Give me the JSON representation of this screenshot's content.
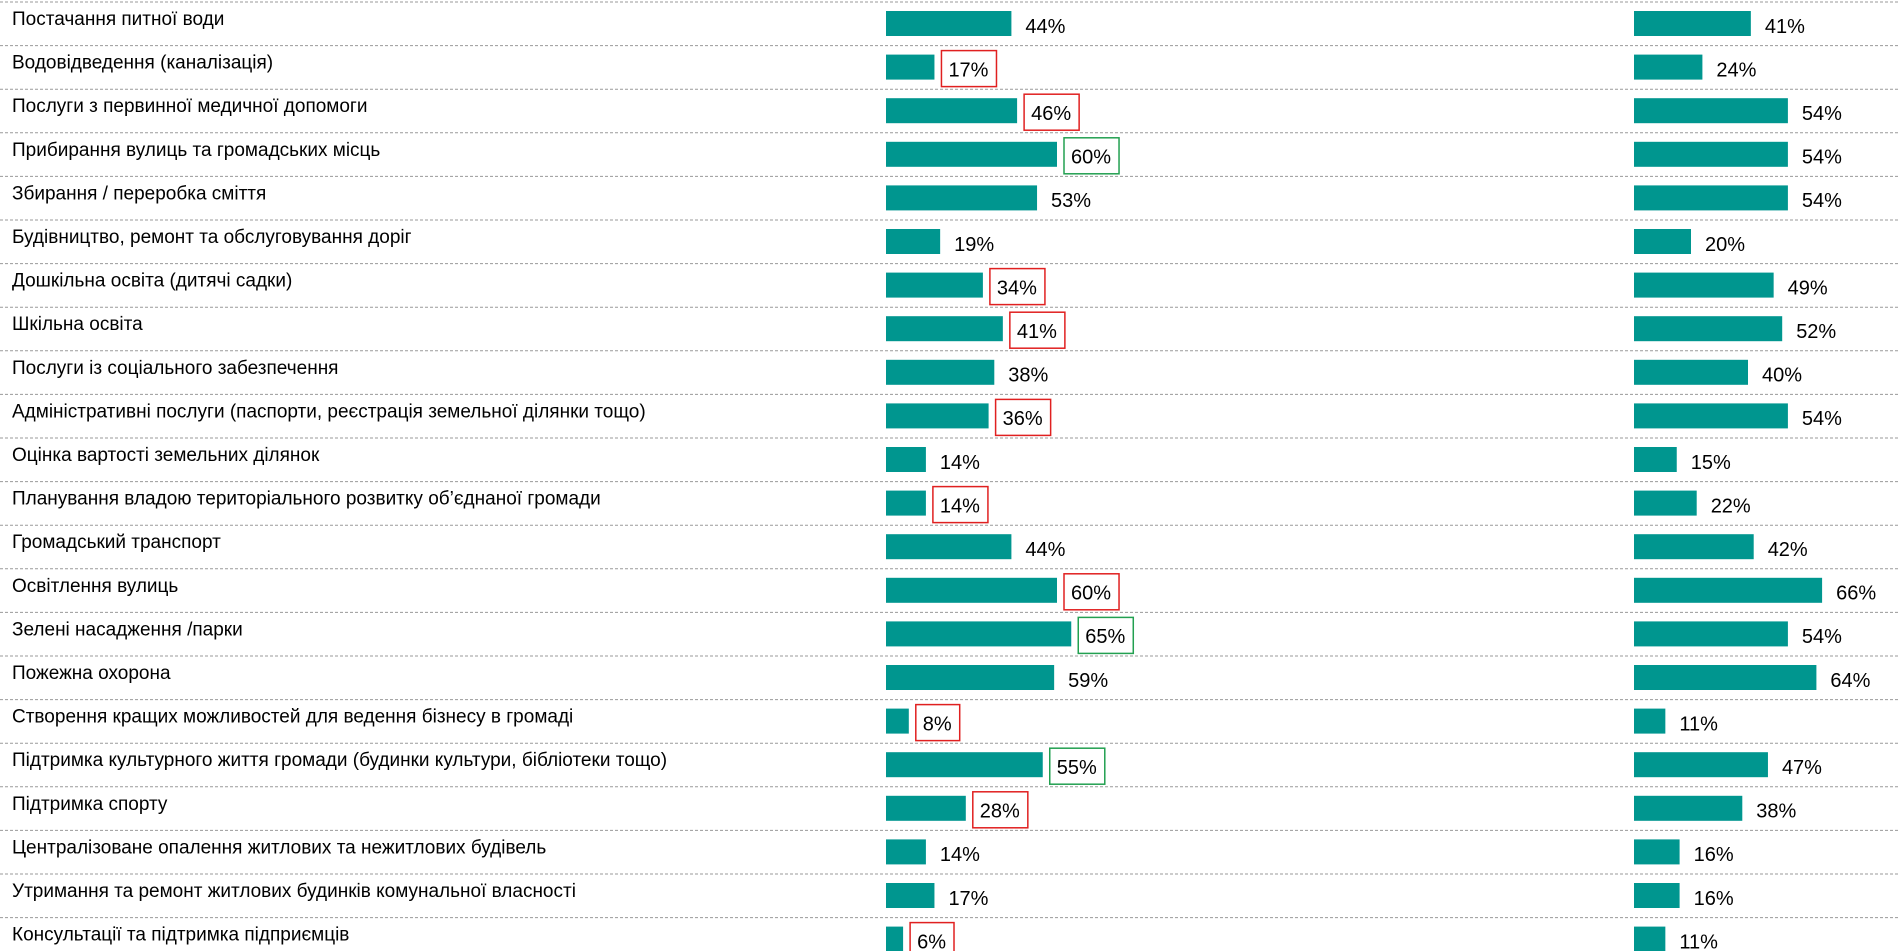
{
  "chart_data": {
    "type": "bar",
    "orientation": "horizontal",
    "categories": [
      "Постачання питної води",
      "Водовідведення (каналізація)",
      "Послуги з первинної медичної допомоги",
      "Прибирання вулиць та громадських місць",
      "Збирання / переробка сміття",
      "Будівництво, ремонт та обслуговування доріг",
      "Дошкільна освіта (дитячі садки)",
      "Шкільна освіта",
      "Послуги із соціального забезпечення",
      "Адміністративні послуги (паспорти, реєстрація земельної ділянки тощо)",
      "Оцінка вартості земельних ділянок",
      "Планування владою територіального розвитку об’єднаної громади",
      "Громадський транспорт",
      "Освітлення вулиць",
      "Зелені насадження /парки",
      "Пожежна охорона",
      "Створення кращих можливостей для ведення бізнесу в громаді",
      "Підтримка культурного життя громади (будинки культури, бібліотеки тощо)",
      "Підтримка спорту",
      "Централізоване опалення житлових та нежитлових будівель",
      "Утримання та ремонт житлових будинків комунальної власності",
      "Консультації та підтримка підприємців"
    ],
    "series": [
      {
        "color": "#00968f",
        "values": [
          44,
          17,
          46,
          60,
          53,
          19,
          34,
          41,
          38,
          36,
          14,
          14,
          44,
          60,
          65,
          59,
          8,
          55,
          28,
          14,
          17,
          6
        ],
        "value_labels": [
          "44%",
          "17%",
          "46%",
          "60%",
          "53%",
          "19%",
          "34%",
          "41%",
          "38%",
          "36%",
          "14%",
          "14%",
          "44%",
          "60%",
          "65%",
          "59%",
          "8%",
          "55%",
          "28%",
          "14%",
          "17%",
          "6%"
        ],
        "label_box_colors": [
          null,
          "#e02020",
          "#e02020",
          "#22a050",
          null,
          null,
          "#e02020",
          "#e02020",
          null,
          "#e02020",
          null,
          "#e02020",
          null,
          "#e02020",
          "#22a050",
          null,
          "#e02020",
          "#22a050",
          "#e02020",
          null,
          null,
          "#e02020"
        ]
      },
      {
        "color": "#00968f",
        "values": [
          41,
          24,
          54,
          54,
          54,
          20,
          49,
          52,
          40,
          54,
          15,
          22,
          42,
          66,
          54,
          64,
          11,
          47,
          38,
          16,
          16,
          11
        ],
        "value_labels": [
          "41%",
          "24%",
          "54%",
          "54%",
          "54%",
          "20%",
          "49%",
          "52%",
          "40%",
          "54%",
          "15%",
          "22%",
          "42%",
          "66%",
          "54%",
          "64%",
          "11%",
          "47%",
          "38%",
          "16%",
          "16%",
          "11%"
        ]
      }
    ]
  }
}
